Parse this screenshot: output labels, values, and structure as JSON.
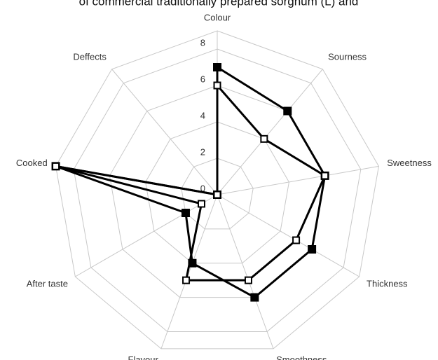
{
  "chart_data": {
    "type": "radar",
    "title": "of commercial traditionally prepared sorghum (L) and",
    "categories": [
      "Colour",
      "Sourness",
      "Sweetness",
      "Thickness",
      "Smoothness",
      "Flavour",
      "After taste",
      "Cooked",
      "Deffects"
    ],
    "ylim": [
      0,
      9
    ],
    "yticks": [
      0,
      2,
      4,
      6,
      8
    ],
    "grid": true,
    "series": [
      {
        "color": "#000000",
        "marker": "filled-square",
        "values": [
          7,
          6,
          6,
          6,
          6,
          4,
          2,
          9,
          0
        ]
      },
      {
        "color": "#000000",
        "marker": "open-square",
        "values": [
          6,
          4,
          6,
          5,
          5,
          5,
          1,
          9,
          0
        ]
      }
    ]
  }
}
